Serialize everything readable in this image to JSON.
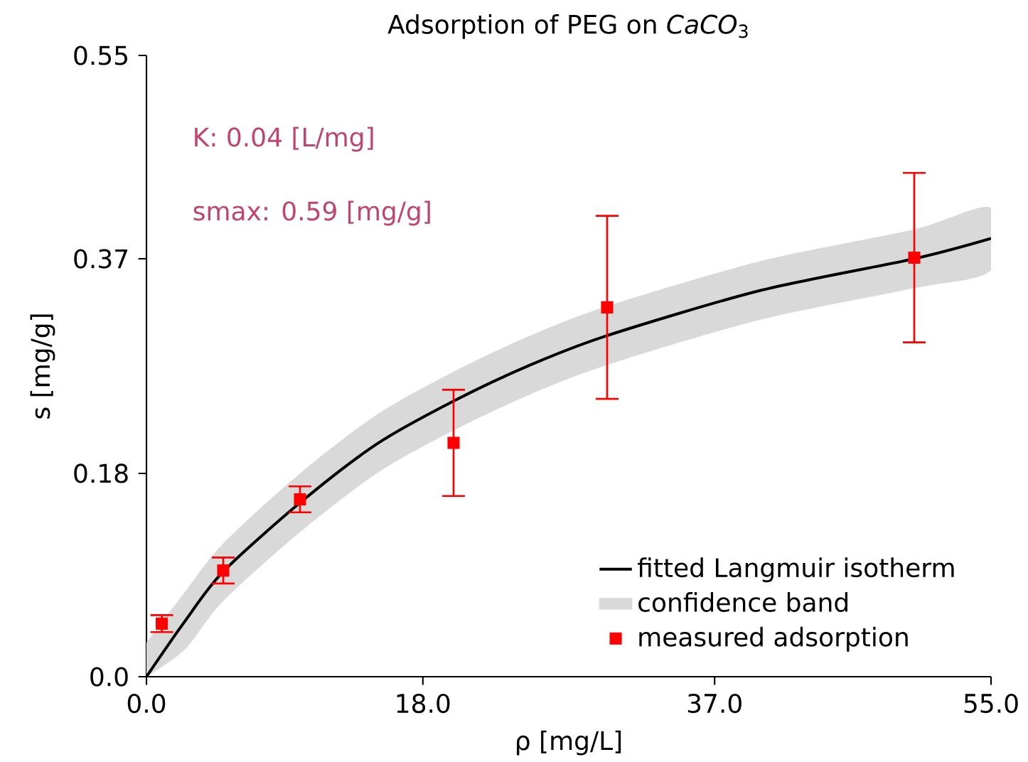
{
  "chart_data": {
    "type": "scatter",
    "title": "Adsorption of PEG on *CaCO*$_{3}$",
    "xlabel": "ρ [mg/L]",
    "ylabel": "s [mg/g]",
    "annotations": [
      "K: 0.04 [L/mg]",
      "smax: 0.59 [mg/g]"
    ],
    "xlim": [
      0,
      55
    ],
    "ylim": [
      0,
      0.55
    ],
    "xticks": [
      {
        "value": 0,
        "label": "0.0"
      },
      {
        "value": 18,
        "label": "18.0"
      },
      {
        "value": 37,
        "label": "37.0"
      },
      {
        "value": 55,
        "label": "55.0"
      }
    ],
    "yticks": [
      {
        "value": 0,
        "label": "0.0"
      },
      0.18,
      0.37,
      0.55
    ],
    "grid": false,
    "legend": "bottom right",
    "series": [
      {
        "name": "fitted Langmuir isotherm",
        "type": "line",
        "color": "#000000",
        "marker": "none",
        "x": [
          0,
          2.5,
          5,
          10,
          15,
          20,
          25,
          30,
          40,
          50,
          55
        ],
        "values": [
          0,
          0.049,
          0.093,
          0.154,
          0.206,
          0.244,
          0.276,
          0.302,
          0.342,
          0.37,
          0.388
        ]
      },
      {
        "name": "confidence band",
        "type": "area",
        "color": "#d9d9d9",
        "x": [
          0,
          2.5,
          5,
          10,
          15,
          20,
          25,
          30,
          40,
          50,
          55
        ],
        "values": [
          null,
          null,
          null,
          null,
          null,
          null,
          null,
          null,
          null,
          null,
          null
        ],
        "lower": [
          0,
          0.024,
          0.067,
          0.128,
          0.18,
          0.218,
          0.25,
          0.276,
          0.316,
          0.344,
          0.36
        ],
        "upper": [
          0.03,
          0.075,
          0.118,
          0.18,
          0.232,
          0.27,
          0.302,
          0.328,
          0.368,
          0.396,
          0.415
        ]
      },
      {
        "name": "measured adsorption",
        "color": "#ff0000",
        "marker": "square",
        "x": [
          1,
          5,
          10,
          20,
          30,
          50
        ],
        "values": [
          0.047,
          0.094,
          0.157,
          0.207,
          0.327,
          0.371
        ],
        "errors": [
          0.0075,
          0.0115,
          0.0115,
          0.047,
          0.081,
          0.075
        ]
      }
    ]
  }
}
